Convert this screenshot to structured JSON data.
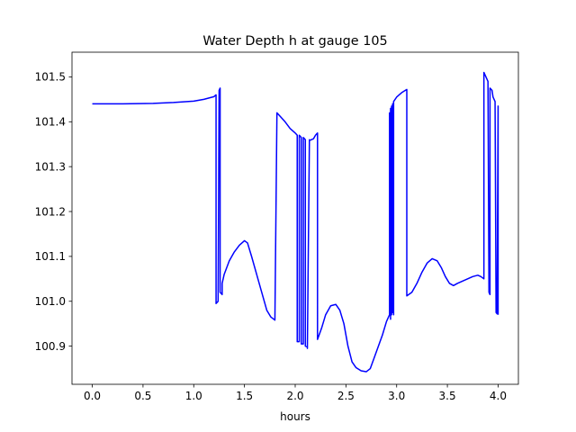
{
  "chart_data": {
    "type": "line",
    "title": "Water Depth h at gauge 105",
    "xlabel": "hours",
    "ylabel": "",
    "xlim": [
      -0.2,
      4.2
    ],
    "ylim": [
      100.815,
      101.555
    ],
    "xticks": [
      0.0,
      0.5,
      1.0,
      1.5,
      2.0,
      2.5,
      3.0,
      3.5,
      4.0
    ],
    "xtick_labels": [
      "0.0",
      "0.5",
      "1.0",
      "1.5",
      "2.0",
      "2.5",
      "3.0",
      "3.5",
      "4.0"
    ],
    "yticks": [
      100.9,
      101.0,
      101.1,
      101.2,
      101.3,
      101.4,
      101.5
    ],
    "ytick_labels": [
      "100.9",
      "101.0",
      "101.1",
      "101.2",
      "101.3",
      "101.4",
      "101.5"
    ],
    "grid": false,
    "legend": "none",
    "series": [
      {
        "color": "#0000ff",
        "x": [
          0.0,
          0.3,
          0.6,
          0.8,
          1.0,
          1.1,
          1.2,
          1.22,
          1.22,
          1.24,
          1.25,
          1.26,
          1.26,
          1.28,
          1.28,
          1.3,
          1.35,
          1.4,
          1.45,
          1.5,
          1.53,
          1.57,
          1.62,
          1.67,
          1.72,
          1.76,
          1.8,
          1.82,
          1.82,
          1.9,
          1.95,
          2.0,
          2.02,
          2.02,
          2.04,
          2.04,
          2.06,
          2.06,
          2.08,
          2.08,
          2.1,
          2.1,
          2.12,
          2.12,
          2.14,
          2.14,
          2.18,
          2.2,
          2.22,
          2.22,
          2.26,
          2.3,
          2.35,
          2.4,
          2.44,
          2.48,
          2.52,
          2.56,
          2.6,
          2.65,
          2.7,
          2.74,
          2.78,
          2.82,
          2.86,
          2.9,
          2.93,
          2.93,
          2.94,
          2.94,
          2.95,
          2.95,
          2.96,
          2.96,
          2.97,
          2.97,
          3.0,
          3.05,
          3.1,
          3.1,
          3.15,
          3.2,
          3.25,
          3.3,
          3.35,
          3.4,
          3.44,
          3.48,
          3.52,
          3.56,
          3.6,
          3.65,
          3.7,
          3.75,
          3.8,
          3.83,
          3.86,
          3.86,
          3.9,
          3.91,
          3.92,
          3.92,
          3.94,
          3.95,
          3.97,
          3.98,
          3.99,
          4.0,
          4.0
        ],
        "y": [
          101.44,
          101.44,
          101.441,
          101.443,
          101.446,
          101.45,
          101.456,
          101.46,
          100.995,
          101.0,
          101.47,
          101.475,
          101.02,
          101.015,
          101.04,
          101.06,
          101.09,
          101.11,
          101.125,
          101.135,
          101.13,
          101.1,
          101.06,
          101.02,
          100.98,
          100.965,
          100.958,
          101.42,
          101.42,
          101.4,
          101.385,
          101.375,
          101.37,
          100.91,
          100.91,
          101.37,
          101.365,
          100.905,
          100.905,
          101.365,
          101.36,
          100.9,
          100.898,
          100.895,
          101.36,
          101.358,
          101.362,
          101.37,
          101.375,
          100.915,
          100.94,
          100.97,
          100.99,
          100.993,
          100.98,
          100.95,
          100.9,
          100.865,
          100.852,
          100.845,
          100.843,
          100.85,
          100.875,
          100.9,
          100.925,
          100.955,
          100.97,
          101.42,
          100.96,
          101.43,
          100.97,
          101.435,
          100.975,
          101.44,
          100.97,
          101.445,
          101.455,
          101.465,
          101.472,
          101.012,
          101.02,
          101.04,
          101.065,
          101.085,
          101.095,
          101.09,
          101.075,
          101.055,
          101.04,
          101.035,
          101.04,
          101.045,
          101.05,
          101.055,
          101.058,
          101.055,
          101.05,
          101.51,
          101.49,
          101.02,
          101.015,
          101.475,
          101.47,
          101.455,
          101.445,
          100.975,
          100.972,
          101.435,
          100.97
        ]
      }
    ]
  }
}
